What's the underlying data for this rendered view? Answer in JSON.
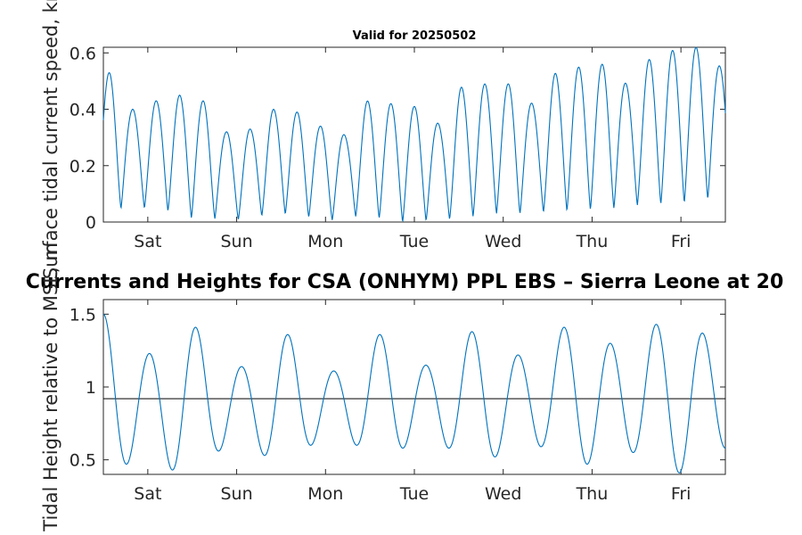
{
  "chart_data": [
    {
      "type": "line",
      "title": "Valid for 20250502",
      "ylabel": "Surface tidal current speed, kn",
      "xlim": [
        0,
        7
      ],
      "ylim": [
        0,
        0.62
      ],
      "yticks": [
        0,
        0.2,
        0.4,
        0.6
      ],
      "ytick_labels": [
        "0",
        "0.2",
        "0.4",
        "0.6"
      ],
      "xticks": [
        0.5,
        1.5,
        2.5,
        3.5,
        4.5,
        5.5,
        6.5
      ],
      "xtick_labels": [
        "Sat",
        "Sun",
        "Mon",
        "Tue",
        "Wed",
        "Thu",
        "Fri"
      ],
      "grid": false,
      "series_color": "#0072bd",
      "peaks": [
        0.53,
        0.4,
        0.43,
        0.45,
        0.43,
        0.32,
        0.33,
        0.4,
        0.39,
        0.34,
        0.31,
        0.43,
        0.42,
        0.41,
        0.35,
        0.48,
        0.49,
        0.49,
        0.42,
        0.53,
        0.55,
        0.56,
        0.49,
        0.58,
        0.61,
        0.62,
        0.55
      ],
      "troughs": [
        0.05,
        0.045,
        0.055,
        0.015,
        0.015,
        0.005,
        0.02,
        0.03,
        0.02,
        0.005,
        0.02,
        0.015,
        0.0,
        0.005,
        0.01,
        0.02,
        0.03,
        0.03,
        0.035,
        0.04,
        0.045,
        0.05,
        0.06,
        0.065,
        0.07,
        0.085
      ]
    },
    {
      "type": "line",
      "title": "Currents and Heights for CSA (ONHYM) PPL EBS  – Sierra Leone at 20",
      "ylabel": "Tidal Height relative to MSL, m",
      "xlim": [
        0,
        7
      ],
      "ylim": [
        0.4,
        1.6
      ],
      "yticks": [
        0.5,
        1,
        1.5
      ],
      "ytick_labels": [
        "0.5",
        "1",
        "1.5"
      ],
      "xticks": [
        0.5,
        1.5,
        2.5,
        3.5,
        4.5,
        5.5,
        6.5
      ],
      "xtick_labels": [
        "Sat",
        "Sun",
        "Mon",
        "Tue",
        "Wed",
        "Thu",
        "Fri"
      ],
      "grid": false,
      "reference_line": 0.92,
      "series_color": "#0072bd",
      "highs": [
        1.5,
        1.23,
        1.41,
        1.14,
        1.36,
        1.11,
        1.36,
        1.15,
        1.38,
        1.22,
        1.41,
        1.3,
        1.43,
        1.37
      ],
      "lows": [
        0.47,
        0.43,
        0.56,
        0.53,
        0.6,
        0.6,
        0.58,
        0.58,
        0.52,
        0.59,
        0.47,
        0.55,
        0.41,
        0.58
      ]
    }
  ]
}
